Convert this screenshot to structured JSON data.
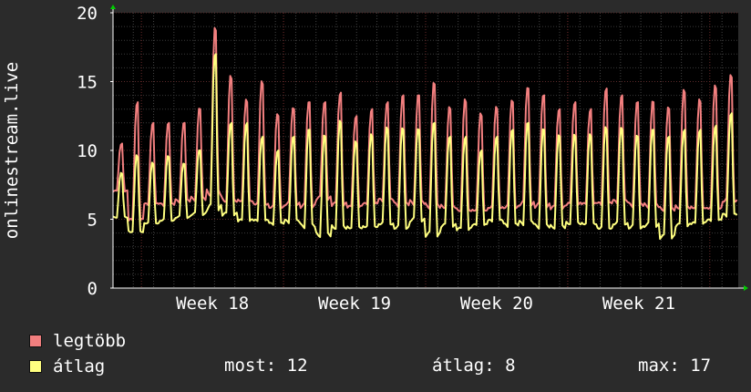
{
  "chart_data": {
    "type": "line",
    "title": "",
    "ylabel": "onlinestream.live",
    "xlabel": "",
    "ylim": [
      0,
      20
    ],
    "yticks": [
      0,
      5,
      10,
      15,
      20
    ],
    "x_range_weeks": [
      17.3,
      21.7
    ],
    "xticks": [
      {
        "label": "Week 18",
        "week": 18
      },
      {
        "label": "Week 19",
        "week": 19
      },
      {
        "label": "Week 20",
        "week": 20
      },
      {
        "label": "Week 21",
        "week": 21
      }
    ],
    "grid": true,
    "background": "#000000",
    "series": [
      {
        "name": "legtöbb",
        "color": "#f27f7f",
        "daily": [
          {
            "min": 7.0,
            "peak": 10.5
          },
          {
            "min": 4.8,
            "peak": 13.5
          },
          {
            "min": 6.0,
            "peak": 12.0
          },
          {
            "min": 6.0,
            "peak": 12.0
          },
          {
            "min": 6.3,
            "peak": 12.0
          },
          {
            "min": 6.5,
            "peak": 13.0
          },
          {
            "min": 7.0,
            "peak": 18.7
          },
          {
            "min": 6.5,
            "peak": 15.2
          },
          {
            "min": 6.5,
            "peak": 13.5
          },
          {
            "min": 6.3,
            "peak": 14.8
          },
          {
            "min": 6.0,
            "peak": 12.5
          },
          {
            "min": 6.2,
            "peak": 13.0
          },
          {
            "min": 6.0,
            "peak": 13.5
          },
          {
            "min": 6.5,
            "peak": 13.5
          },
          {
            "min": 6.0,
            "peak": 14.2
          },
          {
            "min": 5.8,
            "peak": 12.5
          },
          {
            "min": 6.0,
            "peak": 13.0
          },
          {
            "min": 6.3,
            "peak": 13.5
          },
          {
            "min": 6.0,
            "peak": 14.0
          },
          {
            "min": 6.2,
            "peak": 14.0
          },
          {
            "min": 6.0,
            "peak": 14.8
          },
          {
            "min": 6.0,
            "peak": 13.0
          },
          {
            "min": 5.8,
            "peak": 13.5
          },
          {
            "min": 5.8,
            "peak": 12.5
          },
          {
            "min": 6.0,
            "peak": 13.0
          },
          {
            "min": 6.0,
            "peak": 13.5
          },
          {
            "min": 6.2,
            "peak": 14.5
          },
          {
            "min": 6.0,
            "peak": 14.0
          },
          {
            "min": 5.8,
            "peak": 13.0
          },
          {
            "min": 6.0,
            "peak": 13.5
          },
          {
            "min": 6.0,
            "peak": 13.0
          },
          {
            "min": 6.0,
            "peak": 14.5
          },
          {
            "min": 6.2,
            "peak": 14.0
          },
          {
            "min": 6.0,
            "peak": 13.5
          },
          {
            "min": 6.0,
            "peak": 13.5
          },
          {
            "min": 5.8,
            "peak": 13.0
          },
          {
            "min": 6.0,
            "peak": 14.2
          },
          {
            "min": 6.0,
            "peak": 13.5
          },
          {
            "min": 6.0,
            "peak": 14.5
          },
          {
            "min": 6.5,
            "peak": 15.3
          }
        ]
      },
      {
        "name": "átlag",
        "color": "#ffff80",
        "daily": [
          {
            "min": 5.2,
            "peak": 8.3
          },
          {
            "min": 4.2,
            "peak": 9.5
          },
          {
            "min": 4.8,
            "peak": 9.0
          },
          {
            "min": 5.0,
            "peak": 9.5
          },
          {
            "min": 5.2,
            "peak": 9.0
          },
          {
            "min": 5.4,
            "peak": 10.0
          },
          {
            "min": 5.8,
            "peak": 17.0
          },
          {
            "min": 5.3,
            "peak": 12.0
          },
          {
            "min": 4.8,
            "peak": 12.0
          },
          {
            "min": 4.8,
            "peak": 11.0
          },
          {
            "min": 4.6,
            "peak": 10.0
          },
          {
            "min": 4.8,
            "peak": 11.0
          },
          {
            "min": 4.5,
            "peak": 11.5
          },
          {
            "min": 3.9,
            "peak": 11.0
          },
          {
            "min": 4.5,
            "peak": 12.0
          },
          {
            "min": 4.5,
            "peak": 10.5
          },
          {
            "min": 4.6,
            "peak": 11.0
          },
          {
            "min": 4.8,
            "peak": 11.5
          },
          {
            "min": 4.5,
            "peak": 11.5
          },
          {
            "min": 5.0,
            "peak": 11.5
          },
          {
            "min": 3.9,
            "peak": 12.0
          },
          {
            "min": 4.5,
            "peak": 11.0
          },
          {
            "min": 4.2,
            "peak": 11.0
          },
          {
            "min": 4.5,
            "peak": 10.0
          },
          {
            "min": 4.8,
            "peak": 11.0
          },
          {
            "min": 4.5,
            "peak": 11.5
          },
          {
            "min": 4.7,
            "peak": 12.0
          },
          {
            "min": 4.5,
            "peak": 11.5
          },
          {
            "min": 4.5,
            "peak": 11.0
          },
          {
            "min": 4.8,
            "peak": 11.0
          },
          {
            "min": 4.8,
            "peak": 11.0
          },
          {
            "min": 4.5,
            "peak": 11.5
          },
          {
            "min": 4.8,
            "peak": 11.5
          },
          {
            "min": 4.5,
            "peak": 11.0
          },
          {
            "min": 4.6,
            "peak": 11.5
          },
          {
            "min": 3.7,
            "peak": 11.0
          },
          {
            "min": 4.5,
            "peak": 11.5
          },
          {
            "min": 4.6,
            "peak": 11.5
          },
          {
            "min": 4.8,
            "peak": 11.8
          },
          {
            "min": 5.2,
            "peak": 12.7
          }
        ]
      }
    ]
  },
  "legend": [
    {
      "label": "legtöbb",
      "color": "#f27f7f"
    },
    {
      "label": "átlag",
      "color": "#ffff80"
    }
  ],
  "stats": {
    "most": "most: 12",
    "atlag": "átlag: 8",
    "max": "max: 17"
  }
}
